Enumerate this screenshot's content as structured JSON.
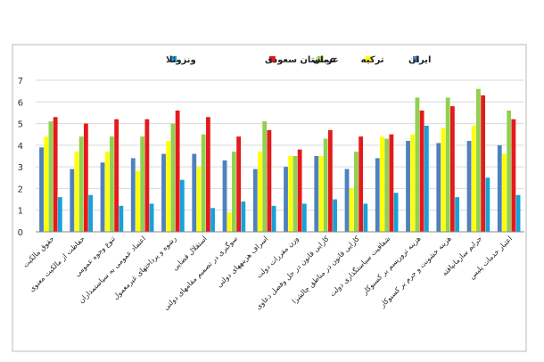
{
  "chart_data": {
    "type": "bar",
    "title": "",
    "xlabel": "",
    "ylabel": "",
    "ylim": [
      0,
      7
    ],
    "yticks": [
      0,
      1,
      2,
      3,
      4,
      5,
      6,
      7
    ],
    "grid": true,
    "legend_position": "top",
    "categories": [
      "حقوق مالکیت",
      "حفاظت از مالکیت معنوی",
      "تنوع وجوه عمومی",
      "اعتماد عمومی به سیاستمداران",
      "رشوه و پرداختهای غیرمعمول",
      "استقلال قضایی",
      "سوگیری در تصمیم مقامهای دولتی",
      "اسراف هزینههای دولتی",
      "وزن مقررات دولت",
      "کارایی قانون در حل وفصل دعاوی",
      "کارایی قانون در مناطق چالشزا",
      "شفافیت سیاستگذاری دولت",
      "هزینه تروریسم بر کسبوکار",
      "هزینه خشونت و جرم بر کسبوکار",
      "جرایم سازمانیافته",
      "اعتبار خدمات پلیس"
    ],
    "series": [
      {
        "name": "ایران",
        "color": "#4f81bd",
        "values": [
          3.9,
          2.9,
          3.2,
          3.4,
          3.6,
          3.6,
          3.3,
          2.9,
          3.0,
          3.5,
          2.9,
          3.4,
          4.2,
          4.1,
          4.2,
          4.0
        ]
      },
      {
        "name": "ترکیه",
        "color": "#ffff00",
        "values": [
          4.4,
          3.7,
          3.7,
          2.8,
          4.2,
          3.0,
          0.9,
          3.7,
          3.5,
          3.5,
          2.0,
          4.4,
          4.5,
          4.8,
          4.9,
          3.6
        ]
      },
      {
        "name": "عمان",
        "color": "#92d050",
        "values": [
          5.1,
          4.4,
          4.4,
          4.4,
          5.0,
          4.5,
          3.7,
          5.1,
          3.5,
          4.3,
          3.7,
          4.3,
          6.2,
          6.2,
          6.6,
          5.6
        ]
      },
      {
        "name": "عربستان سعودی",
        "color": "#e41a1c",
        "values": [
          5.3,
          5.0,
          5.2,
          5.2,
          5.6,
          5.3,
          4.4,
          4.7,
          3.8,
          4.7,
          4.4,
          4.5,
          5.6,
          5.8,
          6.3,
          5.2
        ]
      },
      {
        "name": "ونزوئلا",
        "color": "#17a2d8",
        "values": [
          1.6,
          1.7,
          1.2,
          1.3,
          2.4,
          1.1,
          1.4,
          1.2,
          1.3,
          1.5,
          1.3,
          1.8,
          4.9,
          1.6,
          2.5,
          1.7
        ]
      }
    ]
  }
}
